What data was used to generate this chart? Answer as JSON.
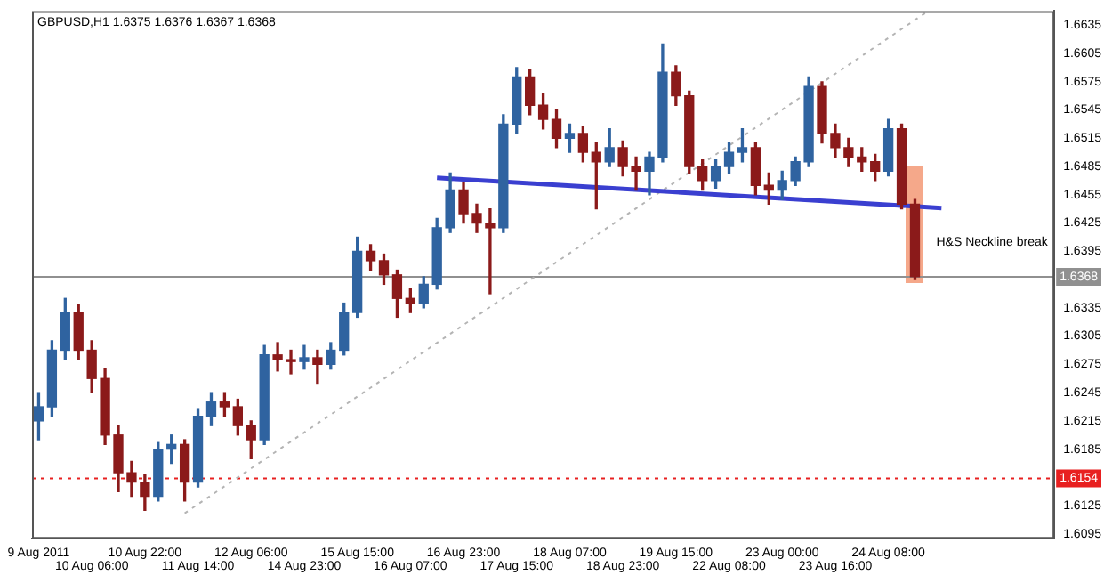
{
  "chart_data": {
    "type": "candlestick",
    "title": "GBPUSD,H1 1.6375 1.6376 1.6367 1.6368",
    "categories": [
      "9 Aug 2011",
      null,
      null,
      null,
      "10 Aug 06:00",
      null,
      null,
      null,
      "10 Aug 22:00",
      null,
      null,
      null,
      "11 Aug 14:00",
      null,
      null,
      null,
      "12 Aug 06:00",
      null,
      null,
      null,
      "14 Aug 23:00",
      null,
      null,
      null,
      "15 Aug 15:00",
      null,
      null,
      null,
      "16 Aug 07:00",
      null,
      null,
      null,
      "16 Aug 23:00",
      null,
      null,
      null,
      "17 Aug 15:00",
      null,
      null,
      null,
      "18 Aug 07:00",
      null,
      null,
      null,
      "18 Aug 23:00",
      null,
      null,
      null,
      "19 Aug 15:00",
      null,
      null,
      null,
      "22 Aug 08:00",
      null,
      null,
      null,
      "23 Aug 00:00",
      null,
      null,
      null,
      "23 Aug 16:00",
      null,
      null,
      null,
      "24 Aug 08:00",
      null,
      null,
      null,
      null,
      null,
      null,
      null,
      null,
      null,
      null,
      null,
      null
    ],
    "ohlc": [
      [
        1.6215,
        1.6245,
        1.6195,
        1.623
      ],
      [
        1.623,
        1.63,
        1.622,
        1.629
      ],
      [
        1.629,
        1.6345,
        1.628,
        1.633
      ],
      [
        1.633,
        1.6338,
        1.628,
        1.629
      ],
      [
        1.629,
        1.63,
        1.6245,
        1.626
      ],
      [
        1.626,
        1.627,
        1.619,
        1.62
      ],
      [
        1.62,
        1.621,
        1.614,
        1.616
      ],
      [
        1.616,
        1.6172,
        1.6135,
        1.615
      ],
      [
        1.615,
        1.6158,
        1.612,
        1.6135
      ],
      [
        1.6135,
        1.6192,
        1.613,
        1.6185
      ],
      [
        1.6185,
        1.62,
        1.617,
        1.619
      ],
      [
        1.619,
        1.6195,
        1.613,
        1.615
      ],
      [
        1.615,
        1.6228,
        1.6145,
        1.622
      ],
      [
        1.622,
        1.6245,
        1.621,
        1.6235
      ],
      [
        1.6235,
        1.6245,
        1.622,
        1.623
      ],
      [
        1.623,
        1.6238,
        1.62,
        1.621
      ],
      [
        1.621,
        1.6215,
        1.6175,
        1.6195
      ],
      [
        1.6195,
        1.6295,
        1.619,
        1.6285
      ],
      [
        1.6285,
        1.6298,
        1.6268,
        1.628
      ],
      [
        1.628,
        1.629,
        1.6265,
        1.6278
      ],
      [
        1.6278,
        1.6295,
        1.627,
        1.6282
      ],
      [
        1.6282,
        1.629,
        1.6255,
        1.6275
      ],
      [
        1.6275,
        1.6298,
        1.627,
        1.629
      ],
      [
        1.629,
        1.634,
        1.6285,
        1.633
      ],
      [
        1.633,
        1.641,
        1.6325,
        1.6395
      ],
      [
        1.6395,
        1.6402,
        1.6375,
        1.6385
      ],
      [
        1.6385,
        1.6392,
        1.636,
        1.637
      ],
      [
        1.637,
        1.6375,
        1.6325,
        1.6345
      ],
      [
        1.6345,
        1.6355,
        1.633,
        1.634
      ],
      [
        1.634,
        1.6368,
        1.6335,
        1.636
      ],
      [
        1.636,
        1.643,
        1.6355,
        1.642
      ],
      [
        1.642,
        1.6478,
        1.6415,
        1.646
      ],
      [
        1.646,
        1.6468,
        1.6425,
        1.6435
      ],
      [
        1.6435,
        1.6445,
        1.6415,
        1.6425
      ],
      [
        1.6425,
        1.644,
        1.635,
        1.642
      ],
      [
        1.642,
        1.654,
        1.6415,
        1.653
      ],
      [
        1.653,
        1.659,
        1.652,
        1.658
      ],
      [
        1.658,
        1.6588,
        1.654,
        1.655
      ],
      [
        1.655,
        1.6562,
        1.6525,
        1.6535
      ],
      [
        1.6535,
        1.6545,
        1.6505,
        1.6515
      ],
      [
        1.6515,
        1.653,
        1.65,
        1.652
      ],
      [
        1.652,
        1.6528,
        1.649,
        1.65
      ],
      [
        1.65,
        1.651,
        1.644,
        1.649
      ],
      [
        1.649,
        1.6525,
        1.6485,
        1.6505
      ],
      [
        1.6505,
        1.6512,
        1.6475,
        1.6485
      ],
      [
        1.6485,
        1.6495,
        1.646,
        1.648
      ],
      [
        1.648,
        1.65,
        1.6455,
        1.6495
      ],
      [
        1.6495,
        1.6615,
        1.649,
        1.6585
      ],
      [
        1.6585,
        1.6592,
        1.655,
        1.656
      ],
      [
        1.656,
        1.6565,
        1.6478,
        1.6485
      ],
      [
        1.6485,
        1.6492,
        1.646,
        1.647
      ],
      [
        1.647,
        1.6492,
        1.6462,
        1.6485
      ],
      [
        1.6485,
        1.651,
        1.6478,
        1.65
      ],
      [
        1.65,
        1.6525,
        1.649,
        1.6505
      ],
      [
        1.6505,
        1.651,
        1.6455,
        1.6465
      ],
      [
        1.6465,
        1.6478,
        1.6445,
        1.646
      ],
      [
        1.646,
        1.648,
        1.645,
        1.647
      ],
      [
        1.647,
        1.6495,
        1.6465,
        1.649
      ],
      [
        1.649,
        1.658,
        1.6485,
        1.657
      ],
      [
        1.657,
        1.6575,
        1.651,
        1.652
      ],
      [
        1.652,
        1.653,
        1.6495,
        1.6505
      ],
      [
        1.6505,
        1.6515,
        1.6485,
        1.6495
      ],
      [
        1.6495,
        1.6505,
        1.648,
        1.649
      ],
      [
        1.649,
        1.6498,
        1.647,
        1.648
      ],
      [
        1.648,
        1.6535,
        1.6475,
        1.6525
      ],
      [
        1.6525,
        1.653,
        1.644,
        1.6445
      ],
      [
        1.6445,
        1.645,
        1.6365,
        1.6368
      ],
      null,
      null,
      null,
      null,
      null,
      null,
      null,
      null,
      null,
      null
    ],
    "colors": [
      "#2f63a0",
      "#2f63a0",
      "#2f63a0",
      "#8b1a1a",
      "#8b1a1a",
      "#8b1a1a",
      "#8b1a1a",
      "#8b1a1a",
      "#8b1a1a",
      "#2f63a0",
      "#2f63a0",
      "#8b1a1a",
      "#2f63a0",
      "#2f63a0",
      "#8b1a1a",
      "#8b1a1a",
      "#8b1a1a",
      "#2f63a0",
      "#8b1a1a",
      "#8b1a1a",
      "#2f63a0",
      "#8b1a1a",
      "#2f63a0",
      "#2f63a0",
      "#2f63a0",
      "#8b1a1a",
      "#8b1a1a",
      "#8b1a1a",
      "#8b1a1a",
      "#2f63a0",
      "#2f63a0",
      "#2f63a0",
      "#8b1a1a",
      "#8b1a1a",
      "#8b1a1a",
      "#2f63a0",
      "#2f63a0",
      "#8b1a1a",
      "#8b1a1a",
      "#8b1a1a",
      "#2f63a0",
      "#8b1a1a",
      "#8b1a1a",
      "#2f63a0",
      "#8b1a1a",
      "#8b1a1a",
      "#2f63a0",
      "#2f63a0",
      "#8b1a1a",
      "#8b1a1a",
      "#8b1a1a",
      "#2f63a0",
      "#2f63a0",
      "#2f63a0",
      "#8b1a1a",
      "#8b1a1a",
      "#2f63a0",
      "#2f63a0",
      "#2f63a0",
      "#8b1a1a",
      "#8b1a1a",
      "#8b1a1a",
      "#8b1a1a",
      "#8b1a1a",
      "#2f63a0",
      "#8b1a1a",
      "#8b1a1a",
      null,
      null,
      null,
      null,
      null,
      null,
      null,
      null,
      null,
      null
    ],
    "series": [
      {
        "type": "line",
        "color": "#3a3fd0",
        "values": [
          null,
          null,
          null,
          null,
          null,
          null,
          null,
          null,
          null,
          null,
          null,
          null,
          null,
          null,
          null,
          null,
          null,
          null,
          null,
          null,
          null,
          null,
          null,
          null,
          null,
          null,
          null,
          null,
          null,
          null,
          1.6473,
          null,
          null,
          null,
          null,
          null,
          null,
          null,
          null,
          null,
          null,
          null,
          null,
          null,
          null,
          null,
          null,
          null,
          null,
          null,
          null,
          null,
          null,
          null,
          null,
          null,
          null,
          null,
          null,
          null,
          null,
          null,
          null,
          null,
          null,
          null,
          null,
          null,
          1.6441,
          null,
          null,
          null,
          null,
          null,
          null,
          null,
          null
        ]
      },
      {
        "type": "line",
        "color": "#b4b4b4",
        "line_style": "dotted",
        "values": [
          null,
          null,
          null,
          null,
          null,
          null,
          null,
          null,
          null,
          null,
          null,
          1.6117,
          null,
          null,
          null,
          null,
          null,
          null,
          null,
          null,
          null,
          null,
          null,
          null,
          null,
          null,
          null,
          null,
          null,
          null,
          null,
          null,
          null,
          null,
          null,
          null,
          null,
          null,
          null,
          null,
          null,
          null,
          null,
          null,
          null,
          null,
          null,
          null,
          null,
          null,
          null,
          null,
          null,
          null,
          null,
          null,
          null,
          null,
          null,
          null,
          null,
          null,
          null,
          null,
          null,
          null,
          null,
          1.665,
          null,
          null,
          null,
          null,
          null,
          null,
          null,
          null,
          null
        ]
      }
    ],
    "ylim": [
      1.609,
      1.665
    ],
    "yticks": [
      1.6095,
      1.6125,
      1.6185,
      1.6215,
      1.6245,
      1.6275,
      1.6305,
      1.6335,
      1.6395,
      1.6425,
      1.6455,
      1.6485,
      1.6515,
      1.6545,
      1.6575,
      1.6605,
      1.6635
    ],
    "ref_lines": [
      {
        "axis": "y",
        "value": 1.6368,
        "label": "1.6368",
        "color": "#909090"
      },
      {
        "axis": "y",
        "value": 1.6154,
        "label": "1.6154",
        "color": "#e82020",
        "line_style": "dotted"
      }
    ],
    "annotations": [
      "H&S Neckline break"
    ],
    "legend": false,
    "grid": false
  }
}
